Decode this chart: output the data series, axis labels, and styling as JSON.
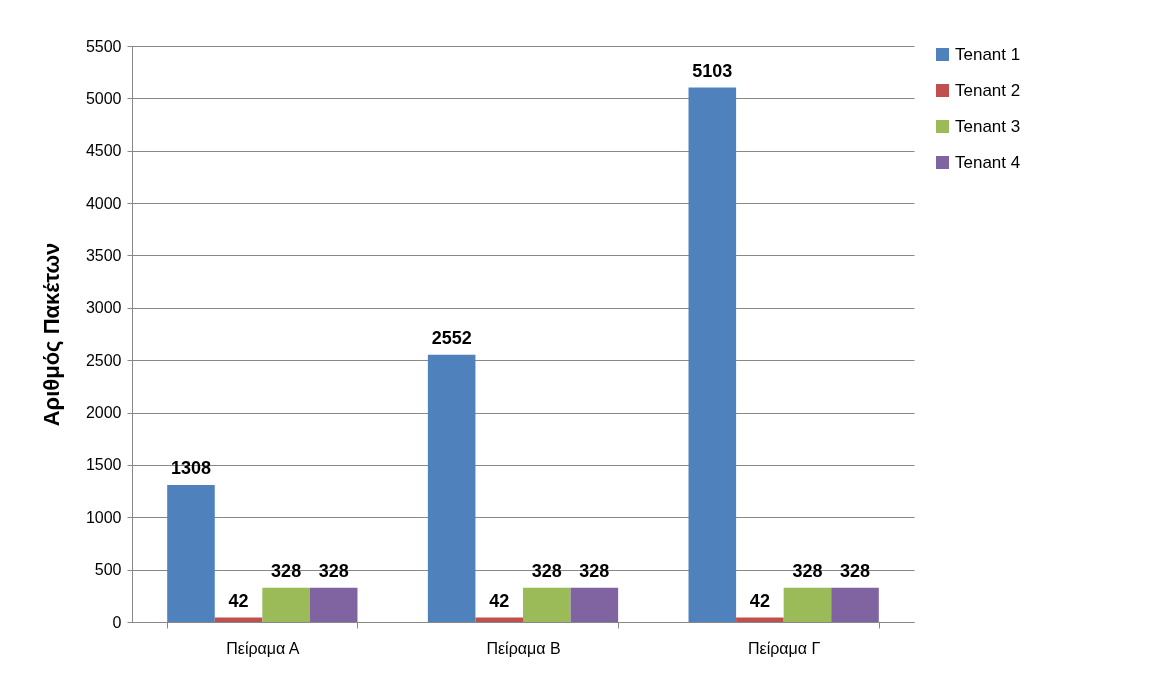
{
  "chart_data": {
    "type": "bar",
    "ylabel": "Αριθμός Πακέτων",
    "categories": [
      "Πείραμα Α",
      "Πείραμα Β",
      "Πείραμα Γ"
    ],
    "series": [
      {
        "name": "Tenant 1",
        "color": "#4f81bd",
        "values": [
          1308,
          2552,
          5103
        ]
      },
      {
        "name": "Tenant 2",
        "color": "#c0504d",
        "values": [
          42,
          42,
          42
        ]
      },
      {
        "name": "Tenant 3",
        "color": "#9bbb59",
        "values": [
          328,
          328,
          328
        ]
      },
      {
        "name": "Tenant 4",
        "color": "#8064a2",
        "values": [
          328,
          328,
          328
        ]
      }
    ],
    "ylim": [
      0,
      5500
    ],
    "yticks": [
      0,
      500,
      1000,
      1500,
      2000,
      2500,
      3000,
      3500,
      4000,
      4500,
      5000,
      5500
    ],
    "grid": "y",
    "legend": "right",
    "data_labels": true
  }
}
